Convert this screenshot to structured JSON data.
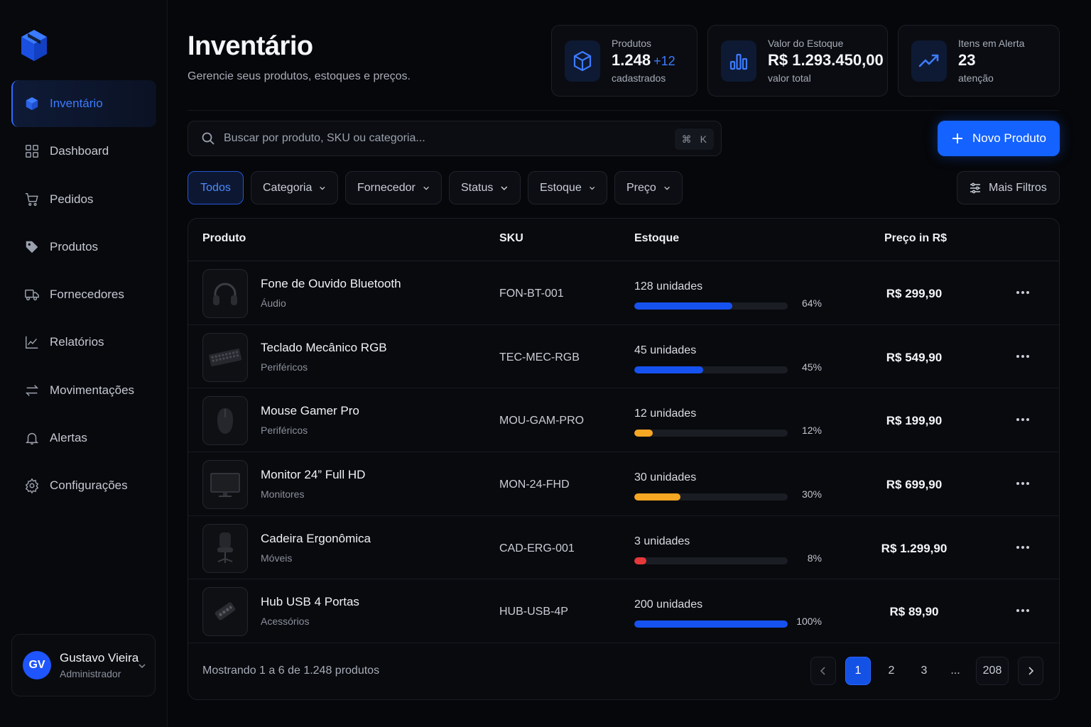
{
  "sidebar": {
    "items": [
      {
        "label": "Inventário",
        "icon": "box-icon",
        "active": true
      },
      {
        "label": "Dashboard",
        "icon": "grid-icon"
      },
      {
        "label": "Pedidos",
        "icon": "cart-icon"
      },
      {
        "label": "Produtos",
        "icon": "tag-icon"
      },
      {
        "label": "Fornecedores",
        "icon": "truck-icon"
      },
      {
        "label": "Relatórios",
        "icon": "chart-icon"
      },
      {
        "label": "Movimentações",
        "icon": "arrows-icon"
      },
      {
        "label": "Alertas",
        "icon": "bell-icon"
      },
      {
        "label": "Configurações",
        "icon": "gear-icon"
      }
    ],
    "user": {
      "initials": "GV",
      "name": "Gustavo Vieira",
      "role": "Administrador"
    }
  },
  "header": {
    "title": "Inventário",
    "subtitle": "Gerencie seus produtos, estoques e preços."
  },
  "stats": [
    {
      "label": "Produtos",
      "value": "1.248",
      "delta": "+12",
      "note": "cadastrados"
    },
    {
      "label": "Valor do Estoque",
      "value": "R$ 1.293.450,00",
      "note": "valor total"
    },
    {
      "label": "Itens em Alerta",
      "value": "23",
      "note": "atenção"
    }
  ],
  "search": {
    "placeholder": "Buscar por produto, SKU ou categoria...",
    "shortcut_symbol": "⌘",
    "shortcut_key": "K"
  },
  "new_button": {
    "label": "Novo Produto"
  },
  "filters": {
    "all": "Todos",
    "chips": [
      "Categoria",
      "Fornecedor",
      "Status",
      "Estoque",
      "Preço"
    ],
    "more": "Mais Filtros"
  },
  "table": {
    "columns": {
      "product": "Produto",
      "sku": "SKU",
      "stock": "Estoque",
      "price": "Preço in R$"
    },
    "rows": [
      {
        "name": "Fone de Ouvido Bluetooth",
        "category": "Áudio",
        "sku": "FON-BT-001",
        "units": "128 unidades",
        "pct_label": "64%",
        "pct": 64,
        "level": "ok",
        "price": "R$ 299,90",
        "thumb": "headphones"
      },
      {
        "name": "Teclado Mecânico RGB",
        "category": "Periféricos",
        "sku": "TEC-MEC-RGB",
        "units": "45 unidades",
        "pct_label": "45%",
        "pct": 45,
        "level": "ok",
        "price": "R$ 549,90",
        "thumb": "keyboard"
      },
      {
        "name": "Mouse Gamer Pro",
        "category": "Periféricos",
        "sku": "MOU-GAM-PRO",
        "units": "12 unidades",
        "pct_label": "12%",
        "pct": 12,
        "level": "warn",
        "price": "R$ 199,90",
        "thumb": "mouse"
      },
      {
        "name": "Monitor 24” Full HD",
        "category": "Monitores",
        "sku": "MON-24-FHD",
        "units": "30 unidades",
        "pct_label": "30%",
        "pct": 30,
        "level": "warn",
        "price": "R$ 699,90",
        "thumb": "monitor"
      },
      {
        "name": "Cadeira Ergonômica",
        "category": "Móveis",
        "sku": "CAD-ERG-001",
        "units": "3 unidades",
        "pct_label": "8%",
        "pct": 8,
        "level": "low",
        "price": "R$ 1.299,90",
        "thumb": "chair"
      },
      {
        "name": "Hub USB 4 Portas",
        "category": "Acessórios",
        "sku": "HUB-USB-4P",
        "units": "200 unidades",
        "pct_label": "100%",
        "pct": 100,
        "level": "ok",
        "price": "R$ 89,90",
        "thumb": "hub"
      }
    ],
    "footer": "Mostrando 1 a 6 de 1.248 produtos",
    "pagination": {
      "pages": [
        "1",
        "2",
        "3",
        "...",
        "208"
      ],
      "current": "1"
    }
  },
  "colors": {
    "accent": "#1462ff",
    "ok": "#1552f0",
    "warn": "#f5a623",
    "low": "#e5383b"
  }
}
